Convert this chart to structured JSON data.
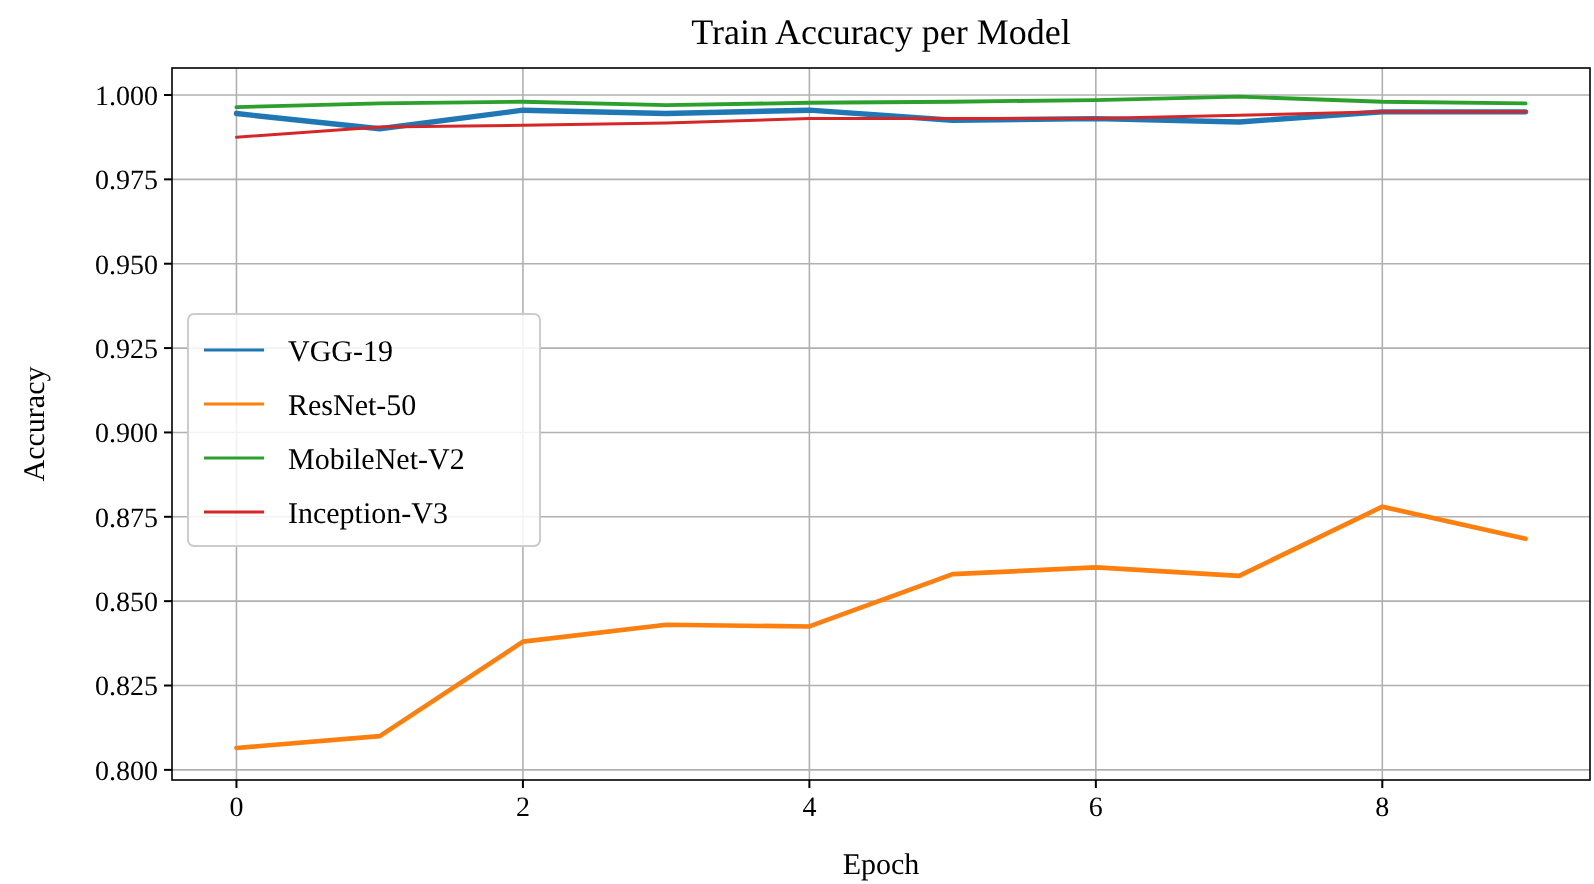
{
  "chart_data": {
    "type": "line",
    "title": "Train Accuracy per Model",
    "xlabel": "Epoch",
    "ylabel": "Accuracy",
    "x": [
      0,
      1,
      2,
      3,
      4,
      5,
      6,
      7,
      8,
      9
    ],
    "series": [
      {
        "name": "VGG-19",
        "color": "#1f77b4",
        "values": [
          0.9945,
          0.99,
          0.9955,
          0.9945,
          0.9955,
          0.9925,
          0.993,
          0.992,
          0.995,
          0.995
        ]
      },
      {
        "name": "ResNet-50",
        "color": "#ff7f0e",
        "values": [
          0.8065,
          0.81,
          0.838,
          0.843,
          0.8425,
          0.858,
          0.86,
          0.8575,
          0.878,
          0.8685
        ]
      },
      {
        "name": "MobileNet-V2",
        "color": "#2ca02c",
        "values": [
          0.9964,
          0.9975,
          0.998,
          0.997,
          0.9977,
          0.998,
          0.9985,
          0.9995,
          0.998,
          0.9975
        ]
      },
      {
        "name": "Inception-V3",
        "color": "#d62728",
        "values": [
          0.9875,
          0.9905,
          0.991,
          0.9917,
          0.993,
          0.993,
          0.993,
          0.994,
          0.995,
          0.995
        ]
      }
    ],
    "xlim": [
      -0.45,
      9.45
    ],
    "xticks": [
      0,
      2,
      4,
      6,
      8
    ],
    "ylim": [
      0.797,
      1.008
    ],
    "yticks": [
      {
        "value": 0.8,
        "label": "0.800"
      },
      {
        "value": 0.825,
        "label": "0.825"
      },
      {
        "value": 0.85,
        "label": "0.850"
      },
      {
        "value": 0.875,
        "label": "0.875"
      },
      {
        "value": 0.9,
        "label": "0.900"
      },
      {
        "value": 0.925,
        "label": "0.925"
      },
      {
        "value": 0.95,
        "label": "0.950"
      },
      {
        "value": 0.975,
        "label": "0.975"
      },
      {
        "value": 1.0,
        "label": "1.000"
      }
    ],
    "grid": true,
    "legend": "center left",
    "marker": "none",
    "line_style": "solid"
  }
}
